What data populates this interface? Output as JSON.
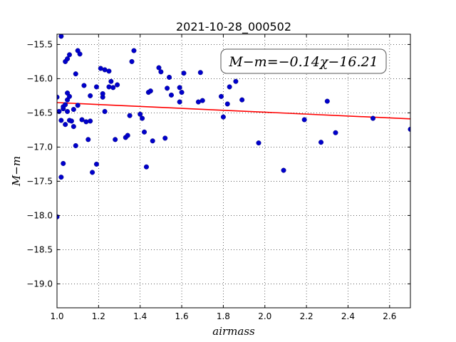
{
  "chart_data": {
    "type": "scatter",
    "title": "2021-10-28_000502",
    "xlabel": "airmass",
    "ylabel": "M−m",
    "xlim": [
      1.0,
      2.7
    ],
    "ylim": [
      -19.35,
      -15.35
    ],
    "y_inverted": true,
    "grid": true,
    "xticks": [
      "1.0",
      "1.2",
      "1.4",
      "1.6",
      "1.8",
      "2.0",
      "2.2",
      "2.4",
      "2.6"
    ],
    "yticks": [
      "−15.5",
      "−16.0",
      "−16.5",
      "−17.0",
      "−17.5",
      "−18.0",
      "−18.5",
      "−19.0"
    ],
    "fit_label": "M−m=−0.14χ−16.21",
    "fit": {
      "slope": -0.14,
      "intercept": -16.21,
      "color": "#ff0000"
    },
    "point_color": "#0000cc",
    "series": [
      {
        "points": [
          [
            1.0,
            -16.27
          ],
          [
            1.01,
            -16.48
          ],
          [
            1.02,
            -16.61
          ],
          [
            1.02,
            -17.44
          ],
          [
            1.02,
            -15.38
          ],
          [
            1.03,
            -16.44
          ],
          [
            1.03,
            -16.41
          ],
          [
            1.03,
            -17.24
          ],
          [
            1.04,
            -16.67
          ],
          [
            1.04,
            -15.75
          ],
          [
            1.04,
            -16.38
          ],
          [
            1.05,
            -16.48
          ],
          [
            1.05,
            -16.31
          ],
          [
            1.05,
            -16.21
          ],
          [
            1.05,
            -15.71
          ],
          [
            1.06,
            -15.65
          ],
          [
            1.06,
            -16.26
          ],
          [
            1.06,
            -16.61
          ],
          [
            1.07,
            -16.62
          ],
          [
            1.08,
            -16.45
          ],
          [
            1.08,
            -16.7
          ],
          [
            1.09,
            -15.93
          ],
          [
            1.09,
            -16.98
          ],
          [
            1.1,
            -16.39
          ],
          [
            1.1,
            -15.59
          ],
          [
            1.11,
            -15.64
          ],
          [
            1.12,
            -16.6
          ],
          [
            1.13,
            -16.1
          ],
          [
            1.14,
            -16.63
          ],
          [
            1.15,
            -16.89
          ],
          [
            1.16,
            -16.62
          ],
          [
            1.16,
            -16.25
          ],
          [
            1.17,
            -17.37
          ],
          [
            1.19,
            -16.12
          ],
          [
            1.19,
            -17.25
          ],
          [
            1.21,
            -15.85
          ],
          [
            1.22,
            -16.27
          ],
          [
            1.22,
            -16.22
          ],
          [
            1.23,
            -15.87
          ],
          [
            1.23,
            -16.48
          ],
          [
            1.25,
            -16.12
          ],
          [
            1.25,
            -15.89
          ],
          [
            1.26,
            -16.04
          ],
          [
            1.27,
            -16.13
          ],
          [
            1.28,
            -16.89
          ],
          [
            1.29,
            -16.09
          ],
          [
            1.33,
            -16.86
          ],
          [
            1.34,
            -16.83
          ],
          [
            1.35,
            -16.54
          ],
          [
            1.36,
            -15.75
          ],
          [
            1.37,
            -15.59
          ],
          [
            1.4,
            -16.52
          ],
          [
            1.41,
            -16.58
          ],
          [
            1.42,
            -16.78
          ],
          [
            1.43,
            -17.29
          ],
          [
            1.44,
            -16.2
          ],
          [
            1.45,
            -16.18
          ],
          [
            1.46,
            -16.91
          ],
          [
            1.49,
            -15.84
          ],
          [
            1.5,
            -15.9
          ],
          [
            1.52,
            -16.87
          ],
          [
            1.53,
            -16.14
          ],
          [
            1.54,
            -15.98
          ],
          [
            1.55,
            -16.24
          ],
          [
            1.59,
            -16.13
          ],
          [
            1.59,
            -16.34
          ],
          [
            1.6,
            -16.2
          ],
          [
            1.61,
            -15.92
          ],
          [
            1.68,
            -16.34
          ],
          [
            1.69,
            -15.91
          ],
          [
            1.7,
            -16.32
          ],
          [
            1.79,
            -16.26
          ],
          [
            1.8,
            -16.56
          ],
          [
            1.82,
            -16.37
          ],
          [
            1.83,
            -16.12
          ],
          [
            1.86,
            -16.04
          ],
          [
            1.89,
            -16.31
          ],
          [
            1.97,
            -16.94
          ],
          [
            2.09,
            -17.34
          ],
          [
            2.19,
            -16.6
          ],
          [
            2.27,
            -16.93
          ],
          [
            2.3,
            -16.33
          ],
          [
            2.34,
            -16.79
          ],
          [
            2.52,
            -16.58
          ],
          [
            2.7,
            -16.74
          ],
          [
            1.0,
            -18.02
          ]
        ]
      }
    ]
  }
}
